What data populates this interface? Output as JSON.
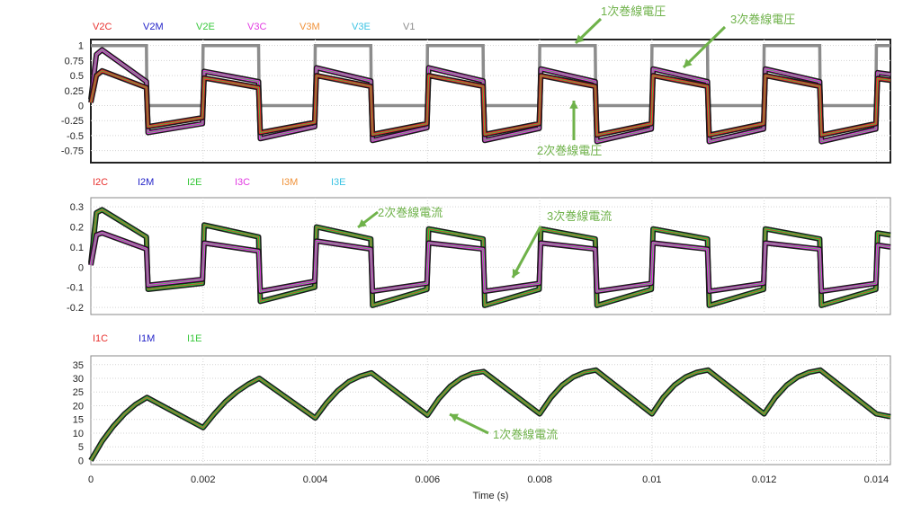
{
  "x_axis": {
    "title": "Time (s)",
    "ticks": [
      0,
      0.002,
      0.004,
      0.006,
      0.008,
      0.01,
      0.012,
      0.014
    ],
    "tick_labels": [
      "0",
      "0.002",
      "0.004",
      "0.006",
      "0.008",
      "0.01",
      "0.012",
      "0.014"
    ],
    "range": [
      0,
      0.01425
    ]
  },
  "colors": {
    "red": "#e8312f",
    "blue": "#2323c8",
    "green": "#39c83c",
    "magenta": "#e23ce2",
    "orange": "#f0923a",
    "cyan": "#3cc3e3",
    "gray": "#8c8c8c",
    "annotation": "#6fb24a"
  },
  "chart_data": [
    {
      "type": "line",
      "ylim": [
        -0.95,
        1.1
      ],
      "yticks": [
        1,
        0.75,
        0.5,
        0.25,
        0,
        -0.25,
        -0.5,
        -0.75
      ],
      "ytick_labels": [
        "1",
        "0.75",
        "0.5",
        "0.25",
        "0",
        "-0.25",
        "-0.5",
        "-0.75"
      ],
      "legend": [
        "V2C",
        "V2M",
        "V2E",
        "V3C",
        "V3M",
        "V3E",
        "V1"
      ],
      "legend_colors": [
        "red",
        "blue",
        "green",
        "magenta",
        "orange",
        "cyan",
        "gray"
      ],
      "series": [
        {
          "name": "V1",
          "color": "gray",
          "x": [
            0,
            0.00099,
            0.001,
            0.00199,
            0.002,
            0.00299,
            0.003,
            0.00399,
            0.004,
            0.00499,
            0.005,
            0.00599,
            0.006,
            0.00699,
            0.007,
            0.00799,
            0.008,
            0.00899,
            0.009,
            0.00999,
            0.01,
            0.01099,
            0.011,
            0.01199,
            0.012,
            0.01299,
            0.013,
            0.01399,
            0.014,
            0.01425
          ],
          "y": [
            1,
            1,
            0,
            0,
            1,
            1,
            0,
            0,
            1,
            1,
            0,
            0,
            1,
            1,
            0,
            0,
            1,
            1,
            0,
            0,
            1,
            1,
            0,
            0,
            1,
            1,
            0,
            0,
            1,
            1
          ]
        },
        {
          "name": "V3C",
          "color": "magenta",
          "x": [
            0,
            0.0001,
            0.0002,
            0.00099,
            0.00102,
            0.00199,
            0.00202,
            0.00299,
            0.00302,
            0.00399,
            0.00402,
            0.00499,
            0.00502,
            0.00599,
            0.00602,
            0.00699,
            0.00702,
            0.00799,
            0.00802,
            0.00899,
            0.00902,
            0.00999,
            0.01002,
            0.01099,
            0.01102,
            0.01199,
            0.01202,
            0.01299,
            0.01302,
            0.01399,
            0.01402,
            0.01425
          ],
          "y": [
            0.1,
            0.85,
            0.93,
            0.4,
            -0.45,
            -0.3,
            0.57,
            0.4,
            -0.55,
            -0.35,
            0.63,
            0.41,
            -0.58,
            -0.37,
            0.63,
            0.41,
            -0.58,
            -0.38,
            0.61,
            0.4,
            -0.6,
            -0.39,
            0.61,
            0.4,
            -0.6,
            -0.39,
            0.61,
            0.4,
            -0.6,
            -0.39,
            0.55,
            0.52
          ]
        },
        {
          "name": "V2C",
          "color": "red",
          "x": [
            0,
            0.0001,
            0.0002,
            0.00099,
            0.00102,
            0.00199,
            0.00202,
            0.00299,
            0.00302,
            0.00399,
            0.00402,
            0.00499,
            0.00502,
            0.00599,
            0.00602,
            0.00699,
            0.00702,
            0.00799,
            0.00802,
            0.00899,
            0.00902,
            0.00999,
            0.01002,
            0.01099,
            0.01102,
            0.01199,
            0.01202,
            0.01299,
            0.01302,
            0.01399,
            0.01402,
            0.01425
          ],
          "y": [
            0.05,
            0.5,
            0.58,
            0.3,
            -0.35,
            -0.2,
            0.46,
            0.3,
            -0.45,
            -0.28,
            0.5,
            0.32,
            -0.48,
            -0.3,
            0.5,
            0.32,
            -0.48,
            -0.3,
            0.5,
            0.32,
            -0.49,
            -0.3,
            0.5,
            0.32,
            -0.49,
            -0.3,
            0.5,
            0.32,
            -0.49,
            -0.3,
            0.45,
            0.42
          ]
        }
      ]
    },
    {
      "type": "line",
      "ylim": [
        -0.235,
        0.345
      ],
      "yticks": [
        0.3,
        0.2,
        0.1,
        0,
        -0.1,
        -0.2
      ],
      "ytick_labels": [
        "0.3",
        "0.2",
        "0.1",
        "0",
        "-0.1",
        "-0.2"
      ],
      "legend": [
        "I2C",
        "I2M",
        "I2E",
        "I3C",
        "I3M",
        "I3E"
      ],
      "legend_colors": [
        "red",
        "blue",
        "green",
        "magenta",
        "orange",
        "cyan"
      ],
      "series": [
        {
          "name": "I2C",
          "color": "green",
          "x": [
            0,
            0.0001,
            0.0002,
            0.00099,
            0.00102,
            0.00199,
            0.00202,
            0.00299,
            0.00302,
            0.00399,
            0.00402,
            0.00499,
            0.00502,
            0.00599,
            0.00602,
            0.00699,
            0.00702,
            0.00799,
            0.00802,
            0.00899,
            0.00902,
            0.00999,
            0.01002,
            0.01099,
            0.01102,
            0.01199,
            0.01202,
            0.01299,
            0.01302,
            0.01399,
            0.01402,
            0.01425
          ],
          "y": [
            0.02,
            0.27,
            0.285,
            0.15,
            -0.11,
            -0.08,
            0.21,
            0.15,
            -0.17,
            -0.1,
            0.2,
            0.14,
            -0.19,
            -0.11,
            0.19,
            0.14,
            -0.19,
            -0.11,
            0.19,
            0.14,
            -0.19,
            -0.11,
            0.19,
            0.14,
            -0.19,
            -0.11,
            0.19,
            0.14,
            -0.19,
            -0.11,
            0.17,
            0.16
          ]
        },
        {
          "name": "I3C",
          "color": "magenta",
          "x": [
            0,
            0.0001,
            0.0002,
            0.00099,
            0.00102,
            0.00199,
            0.00202,
            0.00299,
            0.00302,
            0.00399,
            0.00402,
            0.00499,
            0.00502,
            0.00599,
            0.00602,
            0.00699,
            0.00702,
            0.00799,
            0.00802,
            0.00899,
            0.00902,
            0.00999,
            0.01002,
            0.01099,
            0.01102,
            0.01199,
            0.01202,
            0.01299,
            0.01302,
            0.01399,
            0.01402,
            0.01425
          ],
          "y": [
            0.01,
            0.16,
            0.17,
            0.09,
            -0.09,
            -0.06,
            0.12,
            0.08,
            -0.12,
            -0.07,
            0.13,
            0.09,
            -0.12,
            -0.08,
            0.12,
            0.09,
            -0.12,
            -0.08,
            0.12,
            0.09,
            -0.12,
            -0.08,
            0.12,
            0.09,
            -0.12,
            -0.08,
            0.12,
            0.09,
            -0.12,
            -0.08,
            0.11,
            0.1
          ]
        }
      ]
    },
    {
      "type": "line",
      "ylim": [
        -1.5,
        38.2
      ],
      "yticks": [
        35,
        30,
        25,
        20,
        15,
        10,
        5,
        0
      ],
      "ytick_labels": [
        "35",
        "30",
        "25",
        "20",
        "15",
        "10",
        "5",
        "0"
      ],
      "legend": [
        "I1C",
        "I1M",
        "I1E"
      ],
      "legend_colors": [
        "red",
        "blue",
        "green"
      ],
      "series": [
        {
          "name": "I1C",
          "color": "green",
          "x": [
            0,
            0.0002,
            0.0004,
            0.0006,
            0.0008,
            0.001,
            0.002,
            0.0022,
            0.0024,
            0.0026,
            0.0028,
            0.003,
            0.004,
            0.0042,
            0.0044,
            0.0046,
            0.0048,
            0.005,
            0.006,
            0.0062,
            0.0064,
            0.0066,
            0.0068,
            0.007,
            0.008,
            0.0082,
            0.0084,
            0.0086,
            0.0088,
            0.009,
            0.01,
            0.0102,
            0.0104,
            0.0106,
            0.0108,
            0.011,
            0.012,
            0.0122,
            0.0124,
            0.0126,
            0.0128,
            0.013,
            0.014,
            0.01425
          ],
          "y": [
            0,
            7,
            12.5,
            17,
            20.5,
            23,
            12,
            17,
            21.5,
            25,
            27.8,
            30,
            15.5,
            21,
            25.5,
            28.8,
            30.8,
            32,
            16.5,
            22.5,
            27,
            30,
            31.8,
            32.5,
            17,
            23,
            27.5,
            30.5,
            32.2,
            33,
            17,
            23,
            27.5,
            30.5,
            32.2,
            33,
            17,
            23,
            27.5,
            30.5,
            32.2,
            33,
            17,
            16
          ]
        }
      ]
    }
  ],
  "annotations": [
    {
      "text": "1次巻線電圧"
    },
    {
      "text": "3次巻線電圧"
    },
    {
      "text": "2次巻線電圧"
    },
    {
      "text": "2次巻線電流"
    },
    {
      "text": "3次巻線電流"
    },
    {
      "text": "1次巻線電流"
    }
  ]
}
